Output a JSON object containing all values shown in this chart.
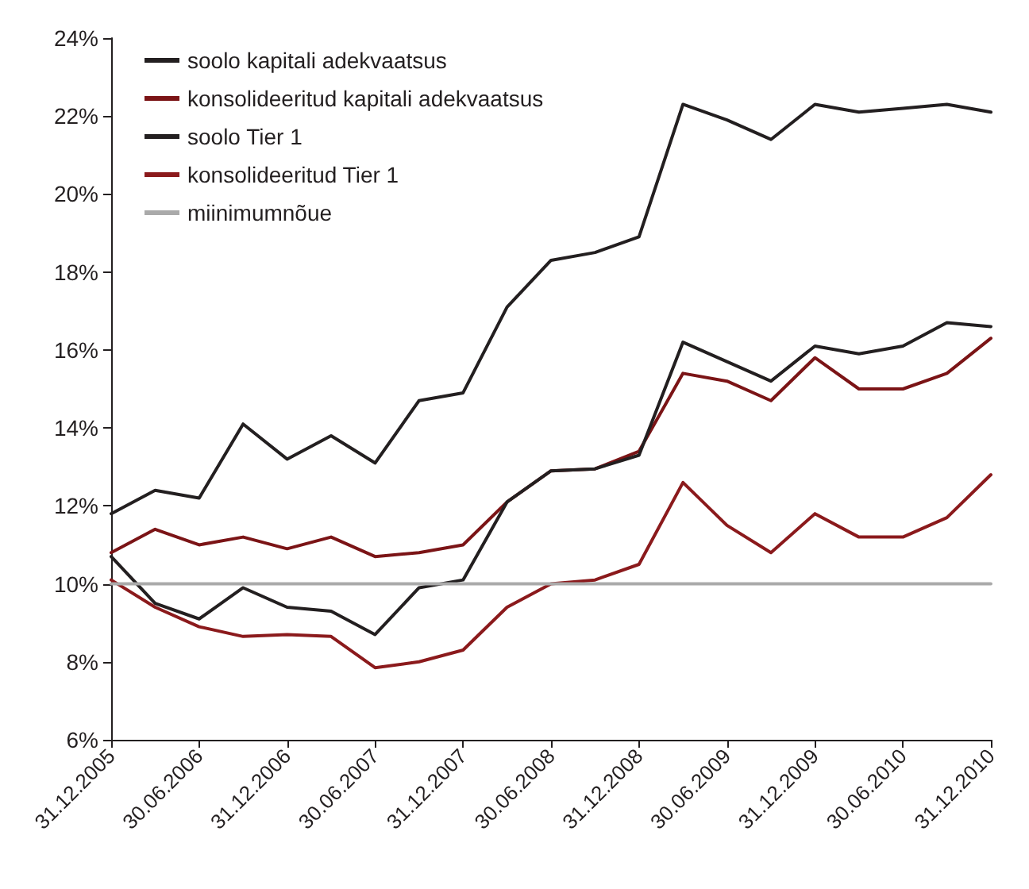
{
  "chart_data": {
    "type": "line",
    "categories": [
      "31.12.2005",
      null,
      "30.06.2006",
      null,
      "31.12.2006",
      null,
      "30.06.2007",
      null,
      "31.12.2007",
      null,
      "30.06.2008",
      null,
      "31.12.2008",
      null,
      "30.06.2009",
      null,
      "31.12.2009",
      null,
      "30.06.2010",
      null,
      "31.12.2010"
    ],
    "series": [
      {
        "name": "soolo kapitali adekvaatsus",
        "color": "#231f20",
        "values": [
          11.8,
          12.4,
          12.2,
          14.1,
          13.2,
          13.8,
          13.1,
          14.7,
          14.9,
          17.1,
          18.3,
          18.5,
          18.9,
          22.3,
          21.9,
          21.4,
          22.3,
          22.1,
          22.2,
          22.3,
          22.1
        ]
      },
      {
        "name": "konsolideeritud kapitali adekvaatsus",
        "color": "#7b1416",
        "values": [
          10.8,
          11.4,
          11.0,
          11.2,
          10.9,
          11.2,
          10.7,
          10.8,
          11.0,
          12.1,
          12.9,
          12.95,
          13.4,
          15.4,
          15.2,
          14.7,
          15.8,
          15.0,
          15.0,
          15.4,
          16.3
        ]
      },
      {
        "name": "soolo Tier 1",
        "color": "#231f20",
        "values": [
          10.7,
          9.5,
          9.1,
          9.9,
          9.4,
          9.3,
          8.7,
          9.9,
          10.1,
          12.1,
          12.9,
          12.95,
          13.3,
          16.2,
          15.7,
          15.2,
          16.1,
          15.9,
          16.1,
          16.7,
          16.6
        ]
      },
      {
        "name": "konsolideeritud Tier 1",
        "color": "#8b1a1c",
        "values": [
          10.1,
          9.4,
          8.9,
          8.65,
          8.7,
          8.65,
          7.85,
          8.0,
          8.3,
          9.4,
          10.0,
          10.1,
          10.5,
          12.6,
          11.5,
          10.8,
          11.8,
          11.2,
          11.2,
          11.7,
          12.8
        ]
      },
      {
        "name": "miinimumnõue",
        "color": "#aaaaaa",
        "values": [
          10,
          10,
          10,
          10,
          10,
          10,
          10,
          10,
          10,
          10,
          10,
          10,
          10,
          10,
          10,
          10,
          10,
          10,
          10,
          10,
          10
        ]
      }
    ],
    "ylim": [
      6,
      24
    ],
    "yticks": [
      {
        "value": 6,
        "label": "6%"
      },
      {
        "value": 8,
        "label": "8%"
      },
      {
        "value": 10,
        "label": "10%"
      },
      {
        "value": 12,
        "label": "12%"
      },
      {
        "value": 14,
        "label": "14%"
      },
      {
        "value": 16,
        "label": "16%"
      },
      {
        "value": 18,
        "label": "18%"
      },
      {
        "value": 20,
        "label": "20%"
      },
      {
        "value": 22,
        "label": "22%"
      },
      {
        "value": 24,
        "label": "24%"
      }
    ],
    "grid": false,
    "legend": "top left",
    "marker": "none",
    "line_style": "solid"
  }
}
